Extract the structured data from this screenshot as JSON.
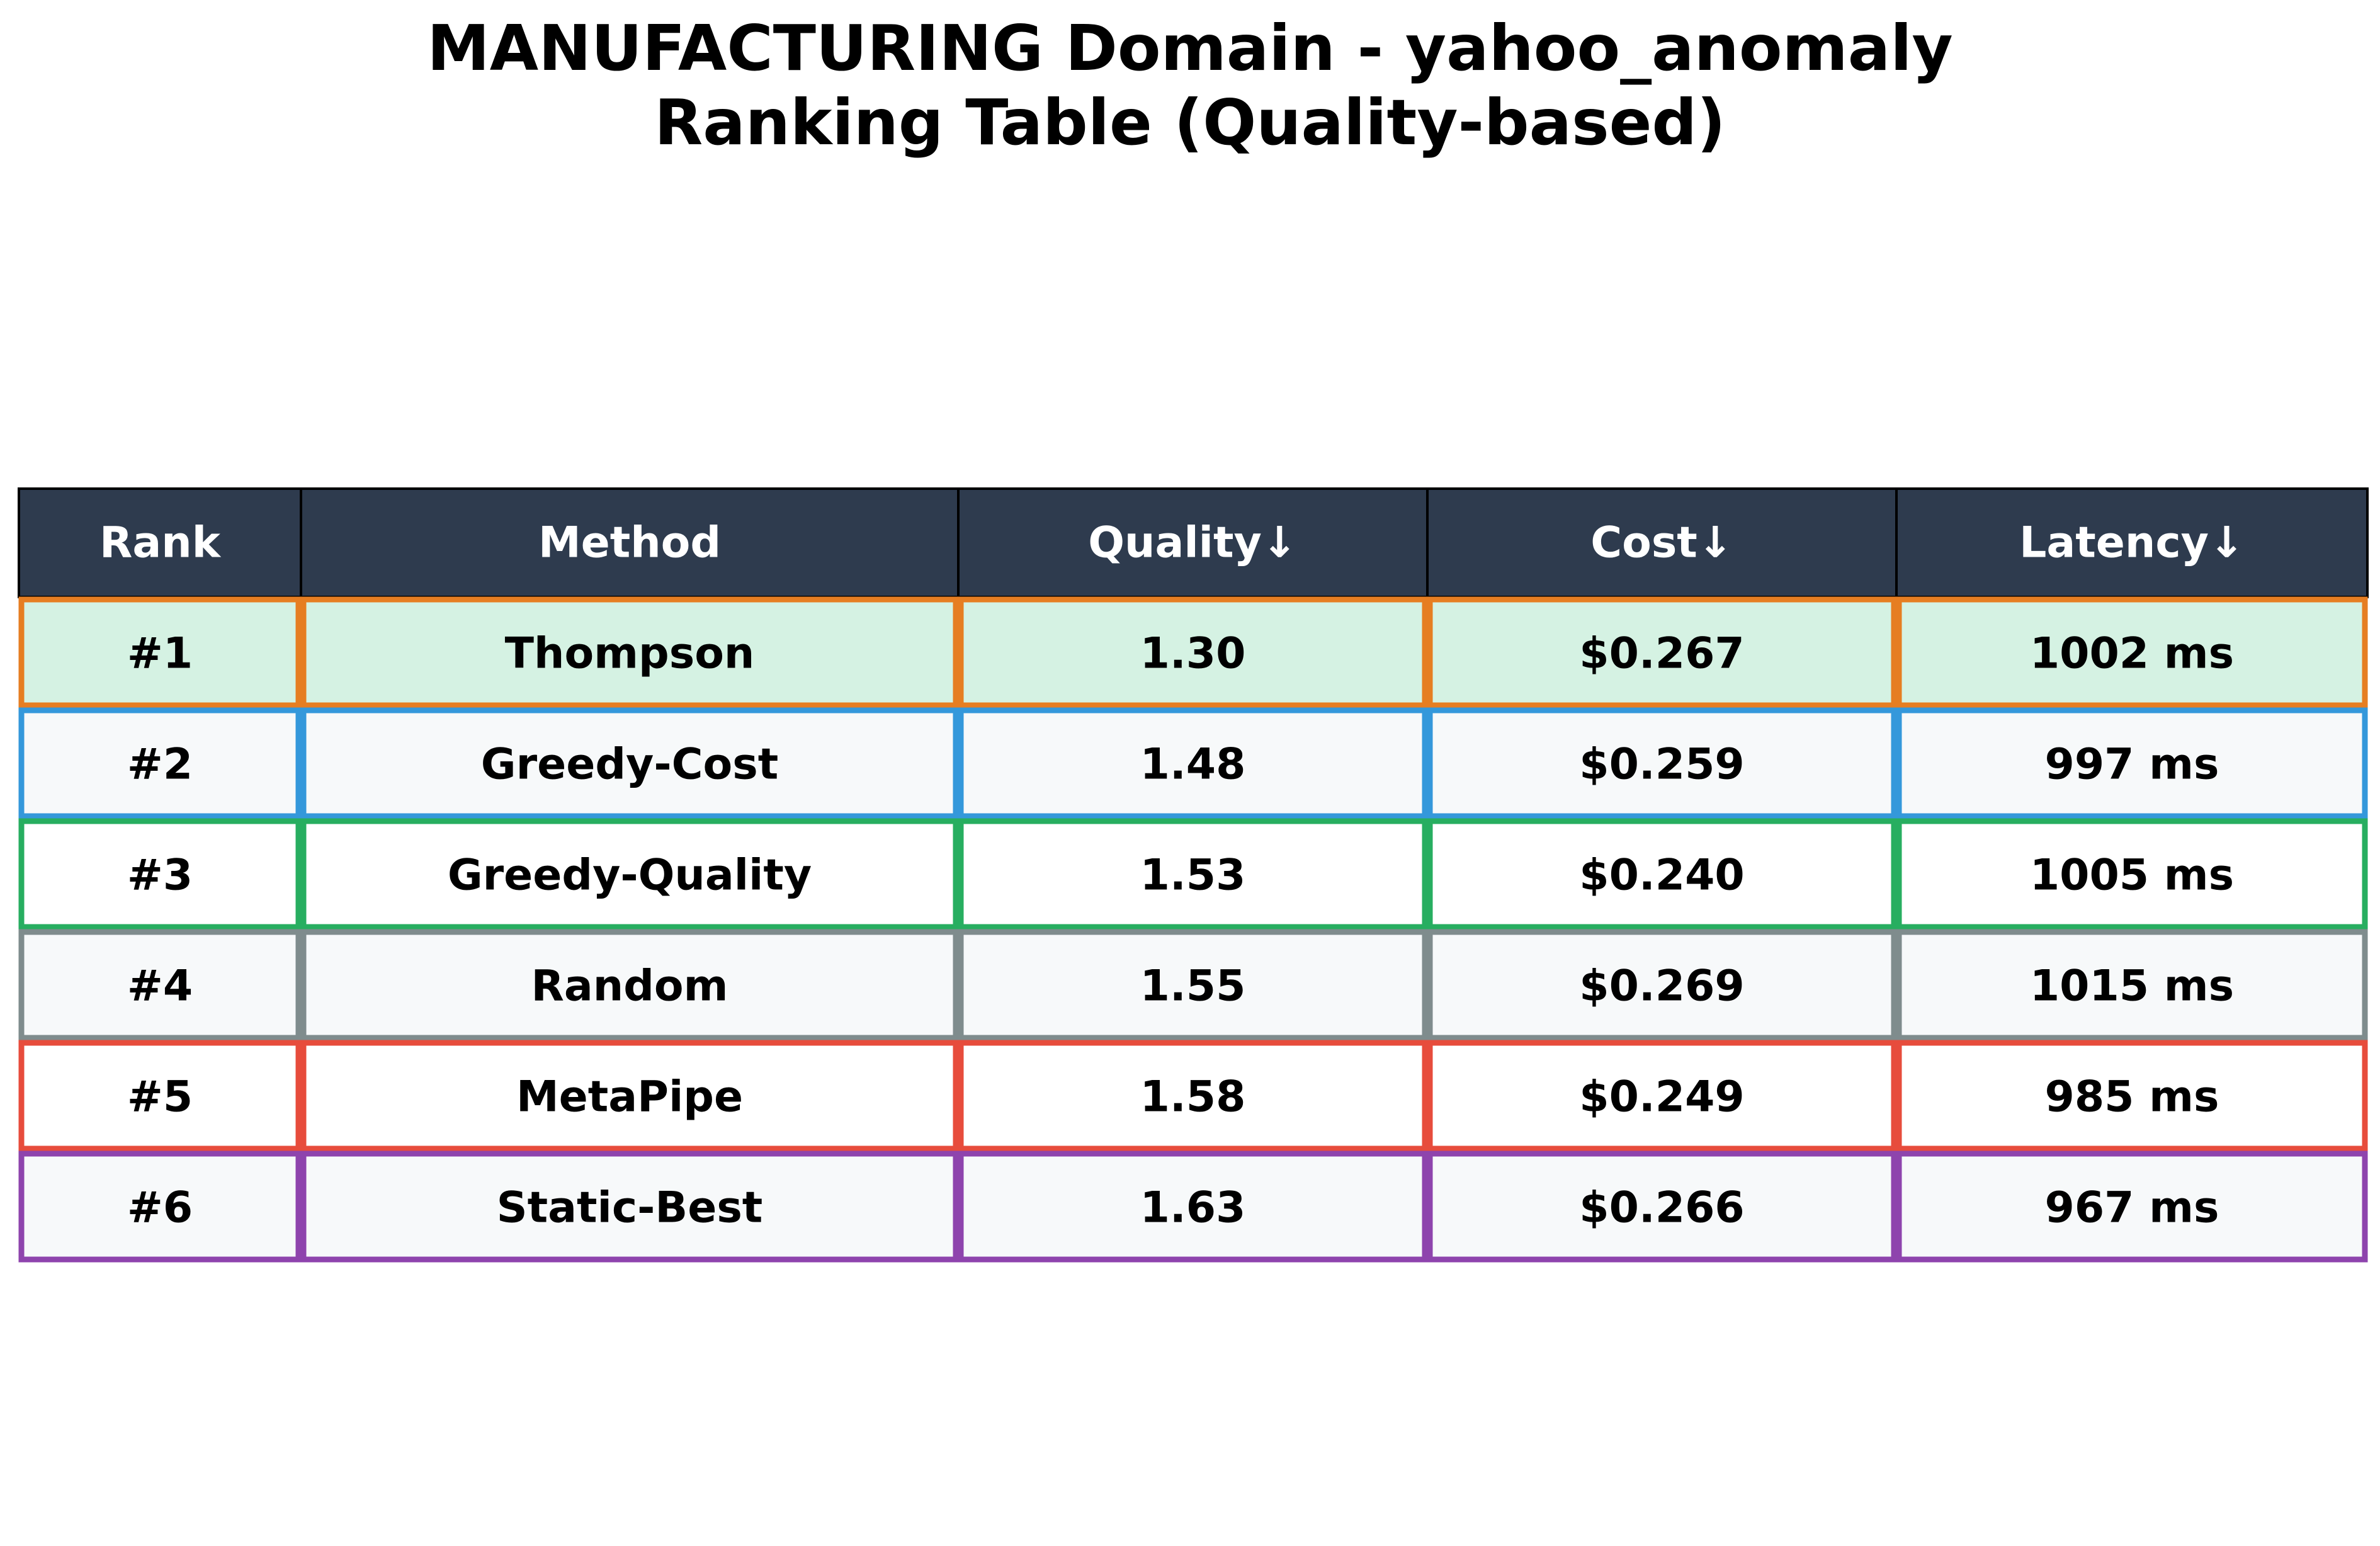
{
  "chart_data": {
    "type": "table",
    "title": "MANUFACTURING Domain - yahoo_anomaly",
    "subtitle": "Ranking Table (Quality-based)",
    "columns": [
      "Rank",
      "Method",
      "Quality↓",
      "Cost↓",
      "Latency↓"
    ],
    "rows": [
      {
        "rank": "#1",
        "method": "Thompson",
        "quality": "1.30",
        "cost": "$0.267",
        "latency": "1002 ms"
      },
      {
        "rank": "#2",
        "method": "Greedy-Cost",
        "quality": "1.48",
        "cost": "$0.259",
        "latency": "997 ms"
      },
      {
        "rank": "#3",
        "method": "Greedy-Quality",
        "quality": "1.53",
        "cost": "$0.240",
        "latency": "1005 ms"
      },
      {
        "rank": "#4",
        "method": "Random",
        "quality": "1.55",
        "cost": "$0.269",
        "latency": "1015 ms"
      },
      {
        "rank": "#5",
        "method": "MetaPipe",
        "quality": "1.58",
        "cost": "$0.249",
        "latency": "985 ms"
      },
      {
        "rank": "#6",
        "method": "Static-Best",
        "quality": "1.63",
        "cost": "$0.266",
        "latency": "967 ms"
      }
    ]
  },
  "colors": {
    "header_background": "#2e3b4e",
    "header_text": "#ffffff",
    "body_text": "#000000",
    "row_fills": [
      "#d5f2e3",
      "#f7f9fa",
      "#ffffff",
      "#f7f9fa",
      "#ffffff",
      "#f7f9fa"
    ],
    "row_borders": [
      "#e67e22",
      "#3498db",
      "#27ae60",
      "#7f8c8d",
      "#e74c3c",
      "#8e44ad"
    ]
  }
}
